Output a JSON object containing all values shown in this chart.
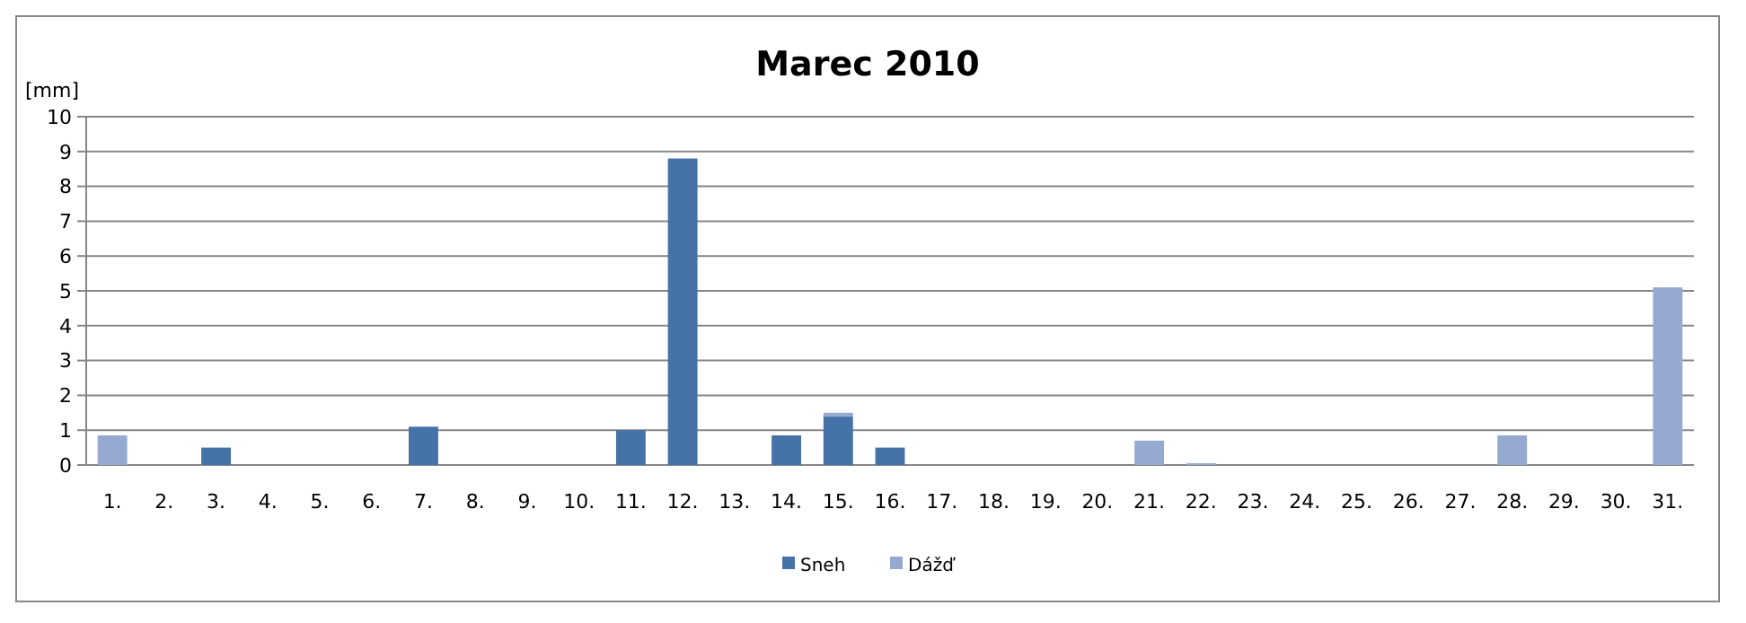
{
  "chart_data": {
    "type": "bar",
    "title": "Marec 2010",
    "ylabel": "[mm]",
    "stacked": true,
    "grid": "y",
    "legend": "bottom",
    "categories": [
      "1.",
      "2.",
      "3.",
      "4.",
      "5.",
      "6.",
      "7.",
      "8.",
      "9.",
      "10.",
      "11.",
      "12.",
      "13.",
      "14.",
      "15.",
      "16.",
      "17.",
      "18.",
      "19.",
      "20.",
      "21.",
      "22.",
      "23.",
      "24.",
      "25.",
      "26.",
      "27.",
      "28.",
      "29.",
      "30.",
      "31."
    ],
    "series": [
      {
        "name": "Sneh",
        "color": "#4572a7",
        "values": [
          0,
          0,
          0.5,
          0,
          0,
          0,
          1.1,
          0,
          0,
          0,
          1.0,
          8.8,
          0,
          0.85,
          1.4,
          0.5,
          0,
          0,
          0,
          0,
          0,
          0,
          0,
          0,
          0,
          0,
          0,
          0,
          0,
          0,
          0
        ]
      },
      {
        "name": "Dážď",
        "color": "#95a9d1",
        "values": [
          0.85,
          0,
          0,
          0,
          0,
          0,
          0,
          0,
          0,
          0,
          0,
          0,
          0,
          0,
          0.1,
          0,
          0,
          0,
          0,
          0,
          0.7,
          0.05,
          0,
          0,
          0,
          0,
          0,
          0.85,
          0,
          0,
          5.1
        ]
      }
    ],
    "ylim": [
      0,
      10
    ],
    "yticks": [
      0,
      1,
      2,
      3,
      4,
      5,
      6,
      7,
      8,
      9,
      10
    ]
  }
}
